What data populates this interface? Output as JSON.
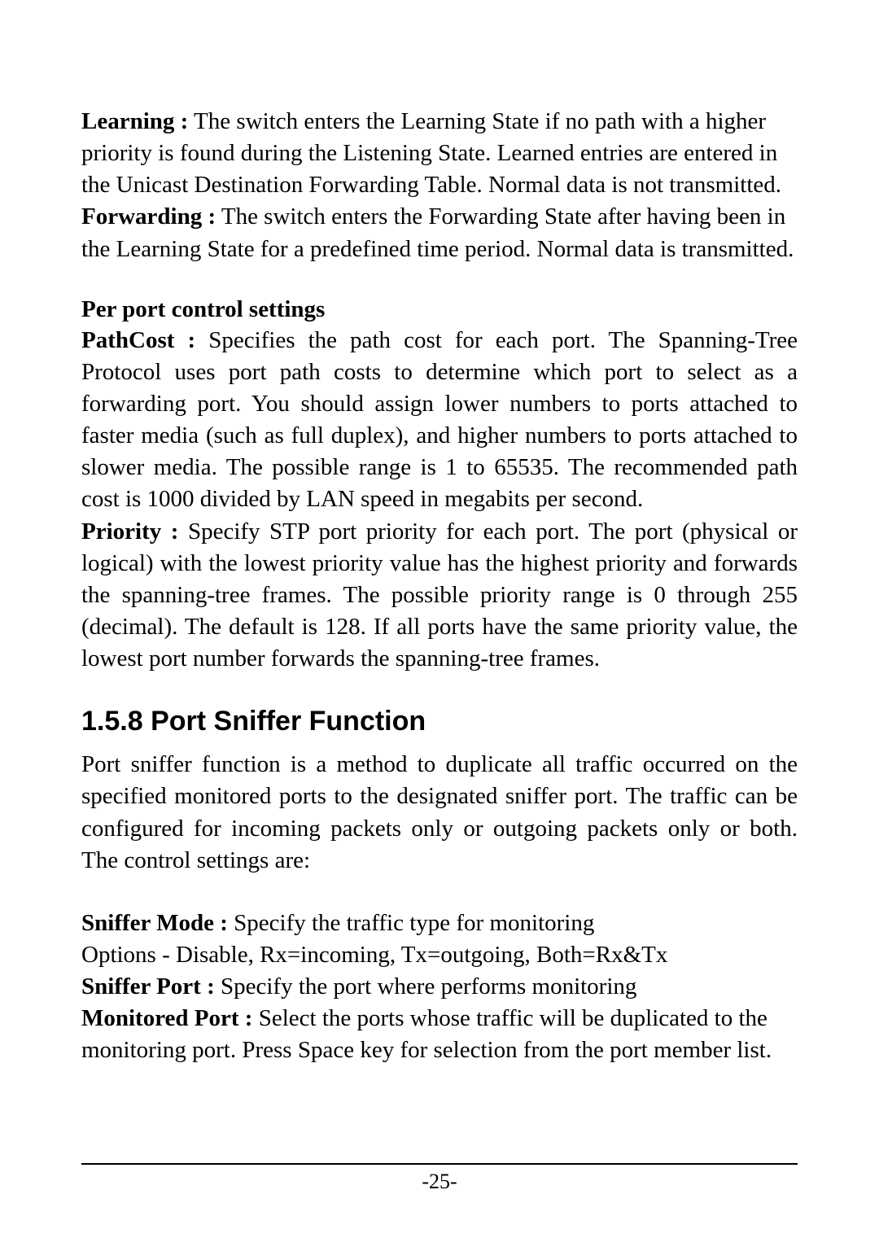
{
  "block1": {
    "learning_label": "Learning :",
    "learning_text": " The switch enters the Learning State if no path with a higher priority is found during the Listening State. Learned entries are entered in the Unicast Destination Forwarding Table. Normal data is not transmitted.",
    "forwarding_label": "Forwarding :",
    "forwarding_text": " The switch enters the Forwarding State after having been in the Learning State for a predefined time period. Normal data is transmitted."
  },
  "block2": {
    "heading": "Per port control settings",
    "pathcost_label": "PathCost :",
    "pathcost_text": " Specifies the path cost for each port. The Spanning-Tree Protocol uses port path costs to determine which port to select as a forwarding port. You should assign lower numbers to ports attached to faster media (such as full duplex), and higher numbers to ports attached to slower media. The possible range is 1 to 65535. The recommended path cost is 1000 divided by LAN speed in megabits per second.",
    "priority_label": "Priority :",
    "priority_text": " Specify STP port priority for each port. The port (physical or logical) with the lowest priority value has the highest priority and forwards the spanning-tree frames. The possible priority range is 0 through 255 (decimal). The default is 128. If all ports have the same priority value, the lowest port number forwards the spanning-tree frames."
  },
  "section": {
    "heading": "1.5.8 Port Sniffer Function",
    "intro": "Port sniffer function is a method to duplicate all traffic occurred on the specified monitored ports to the designated sniffer port. The traffic can be configured for incoming packets only or outgoing packets only or both. The control settings are:"
  },
  "block3": {
    "sniffer_mode_label": "Sniffer Mode :",
    "sniffer_mode_text": " Specify the traffic type for monitoring",
    "options_text": "Options - Disable, Rx=incoming, Tx=outgoing, Both=Rx&Tx",
    "sniffer_port_label": "Sniffer Port :",
    "sniffer_port_text": " Specify the port where performs monitoring",
    "monitored_port_label": "Monitored Port :",
    "monitored_port_text": " Select the ports whose traffic will be duplicated to the monitoring port. Press Space key for selection from the port member list."
  },
  "footer": {
    "page": "-25-"
  }
}
